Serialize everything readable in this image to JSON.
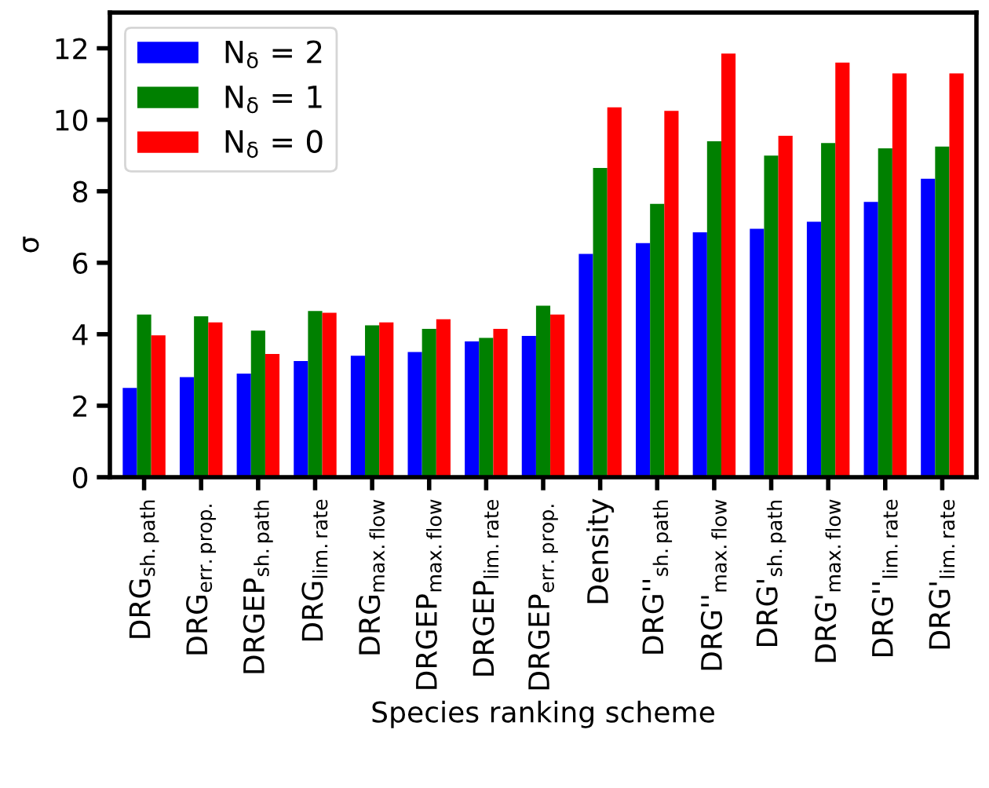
{
  "chart_data": {
    "type": "bar",
    "xlabel": "Species ranking scheme",
    "ylabel": "σ",
    "categories": [
      "DRG$_{sh.path}$",
      "DRG$_{err.prop.}$",
      "DRGEP$_{sh.path}$",
      "DRG$_{lim.rate}$",
      "DRG$_{max.flow}$",
      "DRGEP$_{max.flow}$",
      "DRGEP$_{lim.rate}$",
      "DRGEP$_{err.prop.}$",
      "Density",
      "DRG''$_{sh.path}$",
      "DRG''$_{max.flow}$",
      "DRG'$_{sh.path}$",
      "DRG'$_{max.flow}$",
      "DRG''$_{lim.rate}$",
      "DRG'$_{lim.rate}$"
    ],
    "series": [
      {
        "name": "N$_{δ}$ = 2",
        "color": "#0000ff",
        "values": [
          2.5,
          2.8,
          2.9,
          3.25,
          3.4,
          3.5,
          3.8,
          3.95,
          6.25,
          6.55,
          6.85,
          6.95,
          7.15,
          7.7,
          8.35
        ]
      },
      {
        "name": "N$_{δ}$ = 1",
        "color": "#008000",
        "values": [
          4.55,
          4.5,
          4.1,
          4.65,
          4.25,
          4.15,
          3.9,
          4.8,
          8.65,
          7.65,
          9.4,
          9.0,
          9.35,
          9.2,
          9.25
        ]
      },
      {
        "name": "N$_{δ}$ = 0",
        "color": "#ff0000",
        "values": [
          3.97,
          4.33,
          3.45,
          4.6,
          4.33,
          4.42,
          4.15,
          4.55,
          10.35,
          10.25,
          11.85,
          9.55,
          11.6,
          11.3,
          11.3
        ]
      }
    ],
    "ylim": [
      0,
      13
    ],
    "yticks": [
      0,
      2,
      4,
      6,
      8,
      10,
      12
    ],
    "grid": false,
    "legend": "top left"
  }
}
